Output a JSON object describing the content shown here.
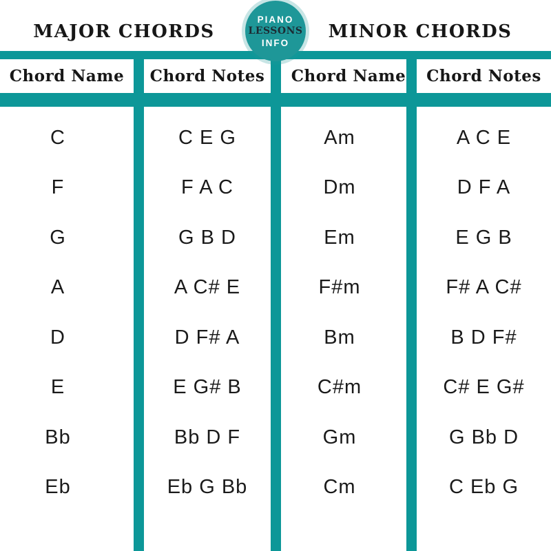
{
  "style": {
    "accent_color": "#0d9798",
    "background_color": "#ffffff",
    "text_color": "#171717",
    "badge_dark_text_color": "#1c2b33"
  },
  "logo_badge": {
    "lines": [
      "PIANO",
      "LESSONS",
      "INFO"
    ]
  },
  "chart_data": {
    "type": "table",
    "group_titles": [
      "MAJOR CHORDS",
      "MINOR CHORDS"
    ],
    "columns": [
      "Chord Name",
      "Chord Notes",
      "Chord Name",
      "Chord Notes"
    ],
    "rows": [
      [
        "C",
        "C E G",
        "Am",
        "A C E"
      ],
      [
        "F",
        "F A C",
        "Dm",
        "D F A"
      ],
      [
        "G",
        "G B D",
        "Em",
        "E G B"
      ],
      [
        "A",
        "A C# E",
        "F#m",
        "F# A C#"
      ],
      [
        "D",
        "D F# A",
        "Bm",
        "B D F#"
      ],
      [
        "E",
        "E G# B",
        "C#m",
        "C# E G#"
      ],
      [
        "Bb",
        "Bb D F",
        "Gm",
        "G Bb D"
      ],
      [
        "Eb",
        "Eb G Bb",
        "Cm",
        "C Eb G"
      ]
    ],
    "layout": {
      "column_divider_x": [
        194,
        393,
        590
      ],
      "grid_color": "#0d9798"
    }
  }
}
